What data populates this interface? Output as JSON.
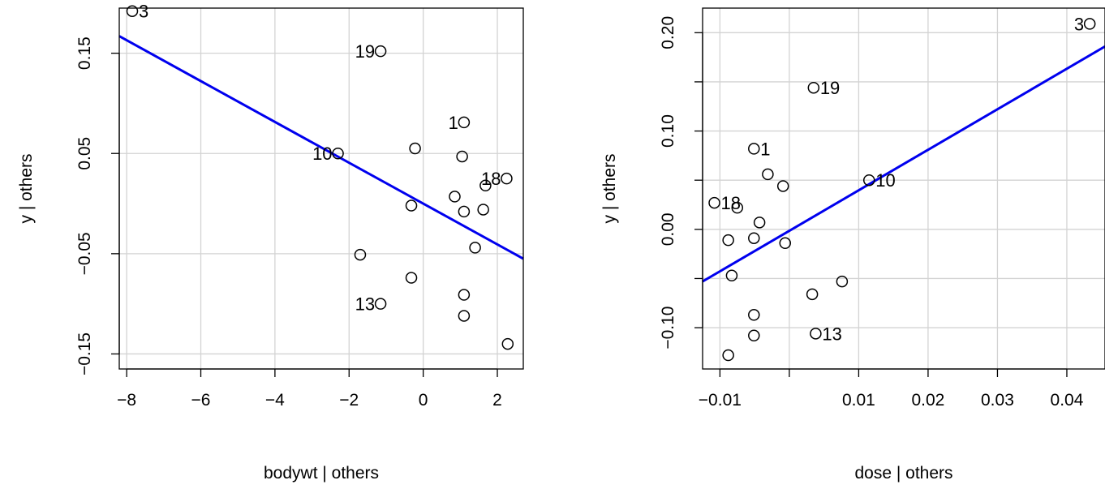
{
  "chart_data": [
    {
      "type": "scatter",
      "xlabel": "bodywt | others",
      "ylabel": "y  | others",
      "xlim": [
        -8.2,
        2.7
      ],
      "ylim": [
        -0.165,
        0.195
      ],
      "x_ticks": [
        -8,
        -6,
        -4,
        -2,
        0,
        2
      ],
      "x_tick_labels": [
        "−8",
        "−6",
        "−4",
        "−2",
        "0",
        "2"
      ],
      "y_ticks": [
        -0.15,
        -0.05,
        0.05,
        0.15
      ],
      "y_tick_labels": [
        "−0.15",
        "−0.05",
        "0.05",
        "0.15"
      ],
      "grid": true,
      "points": [
        {
          "x": -7.85,
          "y": 0.192,
          "label": "3"
        },
        {
          "x": -1.15,
          "y": 0.152,
          "label": "19"
        },
        {
          "x": 1.1,
          "y": 0.081,
          "label": "1"
        },
        {
          "x": -2.3,
          "y": 0.05,
          "label": "10"
        },
        {
          "x": 2.25,
          "y": 0.025,
          "label": "18"
        },
        {
          "x": -1.15,
          "y": -0.1,
          "label": "13"
        },
        {
          "x": -0.22,
          "y": 0.055
        },
        {
          "x": 1.05,
          "y": 0.047
        },
        {
          "x": 1.68,
          "y": 0.018
        },
        {
          "x": 0.85,
          "y": 0.007
        },
        {
          "x": -0.32,
          "y": -0.002
        },
        {
          "x": 1.1,
          "y": -0.008
        },
        {
          "x": 1.62,
          "y": -0.006
        },
        {
          "x": 1.4,
          "y": -0.044
        },
        {
          "x": -1.7,
          "y": -0.051
        },
        {
          "x": -0.32,
          "y": -0.074
        },
        {
          "x": 1.1,
          "y": -0.091
        },
        {
          "x": 1.1,
          "y": -0.112
        },
        {
          "x": 2.28,
          "y": -0.14
        }
      ],
      "fit_line": {
        "x": [
          -8.2,
          2.7
        ],
        "y": [
          0.167,
          -0.055
        ],
        "color": "#0000ee"
      }
    },
    {
      "type": "scatter",
      "xlabel": "dose | others",
      "ylabel": "y  | others",
      "xlim": [
        -0.0125,
        0.0455
      ],
      "ylim": [
        -0.142,
        0.225
      ],
      "x_ticks": [
        -0.01,
        0.0,
        0.01,
        0.02,
        0.03,
        0.04
      ],
      "x_tick_labels": [
        "−0.01",
        "",
        "0.01",
        "0.02",
        "0.03",
        "0.04"
      ],
      "y_ticks": [
        -0.1,
        0.0,
        0.1,
        0.2
      ],
      "y_tick_labels": [
        "−0.10",
        "0.00",
        "0.10",
        "0.20"
      ],
      "y_minor_ticks": [
        -0.05,
        0.05,
        0.15
      ],
      "grid": true,
      "points": [
        {
          "x": 0.0433,
          "y": 0.209,
          "label": "3"
        },
        {
          "x": 0.0035,
          "y": 0.144,
          "label": "19"
        },
        {
          "x": -0.0051,
          "y": 0.082,
          "label": "1"
        },
        {
          "x": 0.0115,
          "y": 0.05,
          "label": "10"
        },
        {
          "x": -0.0108,
          "y": 0.027,
          "label": "18"
        },
        {
          "x": -0.0075,
          "y": 0.022
        },
        {
          "x": -0.0031,
          "y": 0.056
        },
        {
          "x": -0.0009,
          "y": 0.044
        },
        {
          "x": -0.0043,
          "y": 0.007
        },
        {
          "x": -0.0088,
          "y": -0.011
        },
        {
          "x": -0.0051,
          "y": -0.009
        },
        {
          "x": -0.0006,
          "y": -0.014
        },
        {
          "x": -0.0083,
          "y": -0.047
        },
        {
          "x": 0.0076,
          "y": -0.053
        },
        {
          "x": 0.0033,
          "y": -0.066
        },
        {
          "x": -0.0051,
          "y": -0.087
        },
        {
          "x": 0.0038,
          "y": -0.106,
          "label": "13"
        },
        {
          "x": -0.0051,
          "y": -0.108
        },
        {
          "x": -0.0088,
          "y": -0.128
        }
      ],
      "fit_line": {
        "x": [
          -0.0125,
          0.0455
        ],
        "y": [
          -0.053,
          0.186
        ],
        "color": "#0000ee"
      }
    }
  ]
}
